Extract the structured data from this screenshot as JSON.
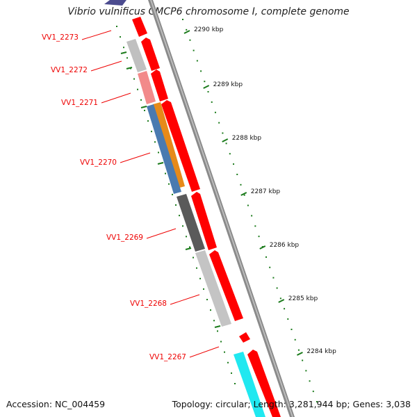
{
  "title": "Vibrio vulnificus CMCP6 chromosome I, complete genome",
  "accession": "Accession: NC_004459",
  "summary": "Topology: circular; Length: 3,281,944 bp; Genes: 3,038",
  "colors": {
    "forward_cds": "#ff0000",
    "backbone": "#888888",
    "label": "#ee0000",
    "ticks": "#1a7a1a",
    "axis_label": "#111111"
  },
  "axis": {
    "ticks": [
      {
        "label": "2290 kbp"
      },
      {
        "label": "2289 kbp"
      },
      {
        "label": "2288 kbp"
      },
      {
        "label": "2287 kbp"
      },
      {
        "label": "2286 kbp"
      },
      {
        "label": "2285 kbp"
      },
      {
        "label": "2284 kbp"
      }
    ]
  },
  "genes": [
    {
      "label": "VV1_2273",
      "color": "#c0c0c0"
    },
    {
      "label": "VV1_2272",
      "color": "#f28a8a"
    },
    {
      "label": "VV1_2271",
      "color": "#e68a1a"
    },
    {
      "label": "VV1_2270",
      "color": "#4a7ab0"
    },
    {
      "label": "VV1_2269",
      "color": "#5a5a5a"
    },
    {
      "label": "VV1_2268",
      "color": "#c4c4c4"
    },
    {
      "label": "VV1_2267",
      "color": "#20e8f0"
    }
  ]
}
